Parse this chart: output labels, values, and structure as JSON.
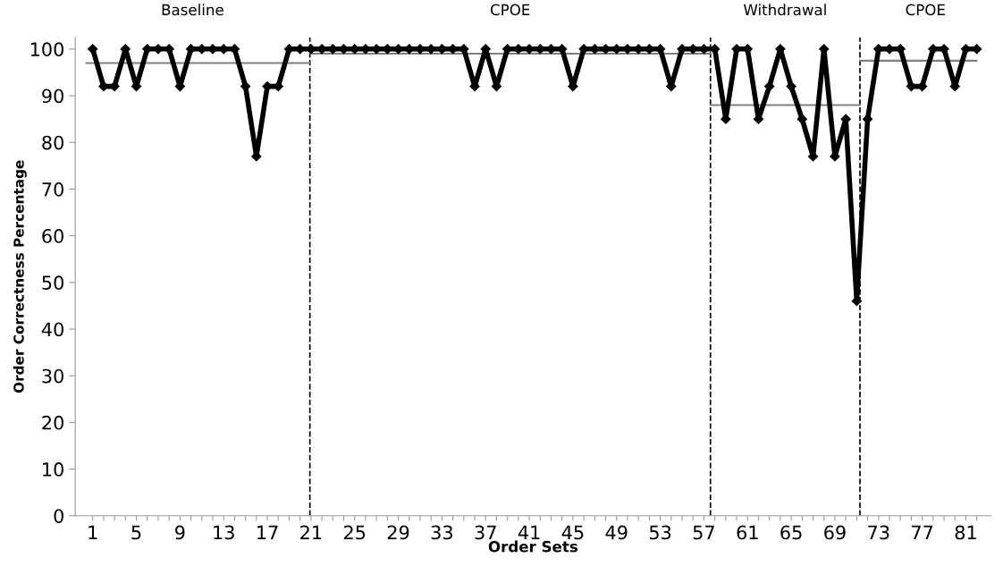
{
  "chart_data": {
    "type": "line",
    "xlabel": "Order Sets",
    "ylabel": "Order Correctness Percentage",
    "xlim": [
      -0.6,
      83.3
    ],
    "ylim": [
      0,
      102.5
    ],
    "xticks": [
      1,
      {
        "value": 2,
        "label": null
      },
      {
        "value": 3,
        "label": null
      },
      {
        "value": 4,
        "label": null
      },
      5,
      {
        "value": 6,
        "label": null
      },
      {
        "value": 7,
        "label": null
      },
      {
        "value": 8,
        "label": null
      },
      9,
      {
        "value": 10,
        "label": null
      },
      {
        "value": 11,
        "label": null
      },
      {
        "value": 12,
        "label": null
      },
      13,
      {
        "value": 14,
        "label": null
      },
      {
        "value": 15,
        "label": null
      },
      {
        "value": 16,
        "label": null
      },
      17,
      {
        "value": 18,
        "label": null
      },
      {
        "value": 19,
        "label": null
      },
      {
        "value": 20,
        "label": null
      },
      21,
      {
        "value": 22,
        "label": null
      },
      {
        "value": 23,
        "label": null
      },
      {
        "value": 24,
        "label": null
      },
      25,
      {
        "value": 26,
        "label": null
      },
      {
        "value": 27,
        "label": null
      },
      {
        "value": 28,
        "label": null
      },
      29,
      {
        "value": 30,
        "label": null
      },
      {
        "value": 31,
        "label": null
      },
      {
        "value": 32,
        "label": null
      },
      33,
      {
        "value": 34,
        "label": null
      },
      {
        "value": 35,
        "label": null
      },
      {
        "value": 36,
        "label": null
      },
      37,
      {
        "value": 38,
        "label": null
      },
      {
        "value": 39,
        "label": null
      },
      {
        "value": 40,
        "label": null
      },
      41,
      {
        "value": 42,
        "label": null
      },
      {
        "value": 43,
        "label": null
      },
      {
        "value": 44,
        "label": null
      },
      45,
      {
        "value": 46,
        "label": null
      },
      {
        "value": 47,
        "label": null
      },
      {
        "value": 48,
        "label": null
      },
      49,
      {
        "value": 50,
        "label": null
      },
      {
        "value": 51,
        "label": null
      },
      {
        "value": 52,
        "label": null
      },
      53,
      {
        "value": 54,
        "label": null
      },
      {
        "value": 55,
        "label": null
      },
      {
        "value": 56,
        "label": null
      },
      57,
      {
        "value": 58,
        "label": null
      },
      {
        "value": 59,
        "label": null
      },
      {
        "value": 60,
        "label": null
      },
      61,
      {
        "value": 62,
        "label": null
      },
      {
        "value": 63,
        "label": null
      },
      {
        "value": 64,
        "label": null
      },
      65,
      {
        "value": 66,
        "label": null
      },
      {
        "value": 67,
        "label": null
      },
      {
        "value": 68,
        "label": null
      },
      69,
      {
        "value": 70,
        "label": null
      },
      {
        "value": 71,
        "label": null
      },
      {
        "value": 72,
        "label": null
      },
      73,
      {
        "value": 74,
        "label": null
      },
      {
        "value": 75,
        "label": null
      },
      {
        "value": 76,
        "label": null
      },
      77,
      {
        "value": 78,
        "label": null
      },
      {
        "value": 79,
        "label": null
      },
      {
        "value": 80,
        "label": null
      },
      81,
      {
        "value": 82,
        "label": null
      }
    ],
    "yticks": [
      0,
      10,
      20,
      30,
      40,
      50,
      60,
      70,
      80,
      90,
      100
    ],
    "grid": false,
    "legend": false,
    "marker": "diamond",
    "line_style": "solid",
    "series": [
      {
        "color": "#000000",
        "x": [
          1,
          2,
          3,
          4,
          5,
          6,
          7,
          8,
          9,
          10,
          11,
          12,
          13,
          14,
          15,
          16,
          17,
          18,
          19,
          20,
          21,
          22,
          23,
          24,
          25,
          26,
          27,
          28,
          29,
          30,
          31,
          32,
          33,
          34,
          35,
          36,
          37,
          38,
          39,
          40,
          41,
          42,
          43,
          44,
          45,
          46,
          47,
          48,
          49,
          50,
          51,
          52,
          53,
          54,
          55,
          56,
          57,
          58,
          59,
          60,
          61,
          62,
          63,
          64,
          65,
          66,
          67,
          68,
          69,
          70,
          71,
          72,
          73,
          74,
          75,
          76,
          77,
          78,
          79,
          80,
          81,
          82
        ],
        "values": [
          100,
          92,
          92,
          100,
          92,
          100,
          100,
          100,
          92,
          100,
          100,
          100,
          100,
          100,
          92,
          77,
          92,
          92,
          100,
          100,
          100,
          100,
          100,
          100,
          100,
          100,
          100,
          100,
          100,
          100,
          100,
          100,
          100,
          100,
          100,
          92,
          100,
          92,
          100,
          100,
          100,
          100,
          100,
          100,
          92,
          100,
          100,
          100,
          100,
          100,
          100,
          100,
          100,
          92,
          100,
          100,
          100,
          100,
          85,
          100,
          100,
          85,
          92,
          100,
          92,
          85,
          77,
          100,
          77,
          85,
          46,
          85,
          100,
          100,
          100,
          92,
          92,
          100,
          100,
          92,
          100,
          100
        ]
      },
      {
        "type": "line",
        "color": "#808080",
        "marker": "none",
        "x": [
          0.4,
          20.9
        ],
        "values": [
          97,
          97
        ]
      },
      {
        "type": "line",
        "color": "#808080",
        "marker": "none",
        "x": [
          20.9,
          57.6
        ],
        "values": [
          99,
          99
        ]
      },
      {
        "type": "line",
        "color": "#808080",
        "marker": "none",
        "x": [
          57.6,
          71.3
        ],
        "values": [
          88,
          88
        ]
      },
      {
        "type": "line",
        "color": "#808080",
        "marker": "none",
        "x": [
          71.3,
          82.0
        ],
        "values": [
          97.5,
          97.5
        ]
      }
    ],
    "ref_lines": [
      {
        "axis": "x",
        "value": 20.9,
        "color": "#000000",
        "line_style": "dashed"
      },
      {
        "axis": "x",
        "value": 57.6,
        "color": "#000000",
        "line_style": "dashed"
      },
      {
        "axis": "x",
        "value": 71.3,
        "color": "#000000",
        "line_style": "dashed"
      }
    ],
    "annotations": [
      "Baseline",
      "CPOE",
      "Withdrawal",
      "CPOE"
    ]
  }
}
